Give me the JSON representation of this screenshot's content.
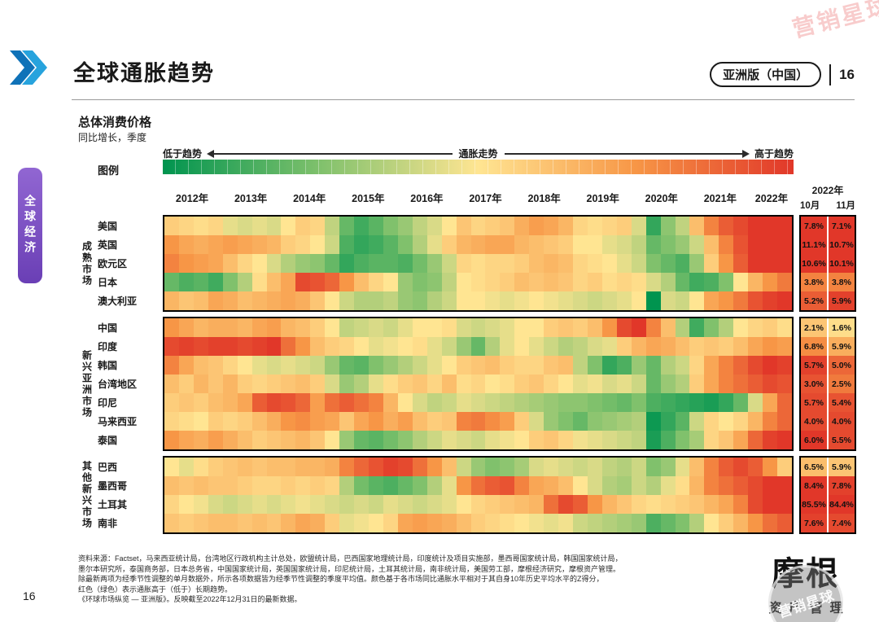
{
  "header": {
    "title": "全球通胀趋势",
    "edition": "亚洲版（中国）",
    "page_badge": "16"
  },
  "sidebar": {
    "label": "全球经济"
  },
  "legend": {
    "name": "图例",
    "low": "低于趋势",
    "axis": "通胀走势",
    "high": "高于趋势"
  },
  "chart_data": {
    "type": "heatmap",
    "title": "总体消费价格",
    "subtitle": "同比增长，季度",
    "unit": "z-score of YoY inflation vs own 10-year average",
    "zlim": [
      -2,
      2
    ],
    "color_stops": [
      "#00944F",
      "#80C16C",
      "#FFE592",
      "#F79646",
      "#E13729"
    ],
    "x_years": [
      "2012年",
      "2013年",
      "2014年",
      "2015年",
      "2016年",
      "2017年",
      "2018年",
      "2019年",
      "2020年",
      "2021年",
      "2022年"
    ],
    "quarters_per_year": [
      4,
      4,
      4,
      4,
      4,
      4,
      4,
      4,
      4,
      4,
      3
    ],
    "monthly_columns": {
      "year": "2022年",
      "months": [
        "10月",
        "11月"
      ]
    },
    "groups": [
      {
        "label": "成熟市场",
        "rows": [
          {
            "label": "美国",
            "z": [
              0.3,
              0.2,
              0.1,
              0.2,
              -0.2,
              -0.3,
              -0.2,
              -0.3,
              0.0,
              0.3,
              0.2,
              -0.5,
              -1.2,
              -1.5,
              -1.3,
              -1.0,
              -0.8,
              -0.5,
              -0.3,
              0.0,
              0.4,
              0.2,
              0.3,
              0.4,
              0.7,
              0.9,
              0.8,
              0.6,
              0.2,
              0.1,
              0.2,
              0.3,
              -0.3,
              -1.6,
              -0.9,
              -0.5,
              0.5,
              1.2,
              1.6,
              1.8,
              2.0,
              2.0,
              2.0
            ],
            "monthly_pct": [
              7.8,
              7.1
            ],
            "monthly_z": [
              2.0,
              2.0
            ]
          },
          {
            "label": "英国",
            "z": [
              1.0,
              0.8,
              0.7,
              0.8,
              0.9,
              0.8,
              0.7,
              0.6,
              0.3,
              0.2,
              0.0,
              -0.4,
              -1.4,
              -1.6,
              -1.5,
              -1.3,
              -1.0,
              -0.6,
              -0.2,
              0.3,
              0.6,
              0.7,
              0.8,
              0.8,
              0.6,
              0.5,
              0.4,
              0.3,
              0.0,
              0.0,
              -0.2,
              -0.3,
              -0.5,
              -1.2,
              -1.0,
              -0.8,
              -0.4,
              0.5,
              1.2,
              1.7,
              2.0,
              2.0,
              2.0
            ],
            "monthly_pct": [
              11.1,
              10.7
            ],
            "monthly_z": [
              2.0,
              2.0
            ]
          },
          {
            "label": "欧元区",
            "z": [
              1.2,
              1.0,
              0.9,
              0.8,
              0.5,
              0.2,
              0.0,
              -0.3,
              -0.6,
              -0.8,
              -0.9,
              -1.2,
              -1.6,
              -1.4,
              -1.3,
              -1.3,
              -1.4,
              -1.1,
              -0.8,
              -0.4,
              0.2,
              0.1,
              0.2,
              0.2,
              0.3,
              0.5,
              0.6,
              0.5,
              0.2,
              0.1,
              0.0,
              -0.2,
              -0.4,
              -1.0,
              -1.2,
              -1.4,
              -0.8,
              0.3,
              1.0,
              1.6,
              2.0,
              2.0,
              2.0
            ],
            "monthly_pct": [
              10.6,
              10.1
            ],
            "monthly_z": [
              2.0,
              2.0
            ]
          },
          {
            "label": "日本",
            "z": [
              -1.2,
              -1.4,
              -1.3,
              -1.5,
              -1.0,
              -0.6,
              0.1,
              0.5,
              0.8,
              1.8,
              1.7,
              1.5,
              1.0,
              0.5,
              0.2,
              0.0,
              -0.8,
              -1.0,
              -0.9,
              -0.5,
              0.0,
              0.1,
              0.2,
              0.3,
              0.5,
              0.4,
              0.5,
              0.4,
              0.2,
              0.3,
              0.1,
              0.2,
              0.1,
              -0.3,
              -0.6,
              -1.2,
              -1.5,
              -1.4,
              -1.0,
              0.0,
              0.6,
              1.0,
              1.3
            ],
            "monthly_pct": [
              3.8,
              3.8
            ],
            "monthly_z": [
              1.2,
              1.2
            ]
          },
          {
            "label": "澳大利亚",
            "z": [
              0.6,
              0.4,
              0.5,
              0.8,
              0.7,
              0.5,
              0.6,
              0.7,
              0.8,
              0.7,
              0.4,
              0.0,
              -0.4,
              -0.6,
              -0.6,
              -0.5,
              -0.8,
              -0.9,
              -0.6,
              -0.4,
              0.0,
              0.0,
              -0.1,
              -0.2,
              -0.1,
              0.0,
              -0.1,
              -0.2,
              -0.3,
              -0.4,
              -0.3,
              -0.2,
              0.0,
              -2.0,
              -0.3,
              -0.4,
              0.0,
              0.8,
              1.0,
              1.3,
              1.7,
              1.9,
              2.0
            ],
            "monthly_pct": [
              5.2,
              5.9
            ],
            "monthly_z": [
              1.6,
              1.9
            ]
          }
        ]
      },
      {
        "label": "新兴亚洲市场",
        "rows": [
          {
            "label": "中国",
            "z": [
              1.0,
              0.8,
              0.6,
              0.7,
              0.7,
              0.6,
              0.8,
              0.9,
              0.6,
              0.5,
              0.3,
              0.0,
              -0.5,
              -0.4,
              -0.3,
              -0.4,
              -0.2,
              0.0,
              0.0,
              0.1,
              -0.3,
              -0.4,
              -0.3,
              -0.2,
              0.0,
              0.0,
              0.3,
              0.4,
              0.3,
              0.5,
              1.0,
              1.8,
              2.0,
              1.2,
              0.5,
              -0.6,
              -1.5,
              -1.0,
              -0.6,
              0.0,
              0.2,
              0.3,
              0.1
            ],
            "monthly_pct": [
              2.1,
              1.6
            ],
            "monthly_z": [
              0.4,
              0.1
            ]
          },
          {
            "label": "印度",
            "z": [
              1.8,
              1.9,
              1.8,
              1.9,
              1.9,
              1.8,
              1.9,
              2.0,
              1.4,
              1.0,
              0.5,
              0.3,
              0.2,
              0.0,
              -0.2,
              -0.1,
              0.0,
              0.1,
              -0.2,
              -0.4,
              -0.8,
              -1.2,
              -0.6,
              -0.2,
              0.0,
              -0.2,
              -0.4,
              -0.6,
              -0.5,
              -0.3,
              -0.2,
              0.3,
              0.6,
              0.8,
              0.7,
              0.5,
              0.3,
              0.4,
              0.3,
              0.5,
              0.8,
              1.0,
              0.9
            ],
            "monthly_pct": [
              6.8,
              5.9
            ],
            "monthly_z": [
              1.1,
              0.7
            ]
          },
          {
            "label": "韩国",
            "z": [
              1.2,
              0.8,
              0.5,
              0.4,
              0.2,
              0.0,
              -0.2,
              -0.3,
              -0.2,
              -0.3,
              -0.4,
              -0.8,
              -1.2,
              -1.3,
              -1.0,
              -0.8,
              -0.6,
              -0.4,
              -0.2,
              0.0,
              0.3,
              0.4,
              0.5,
              0.3,
              0.2,
              0.2,
              0.4,
              0.5,
              -0.5,
              -1.0,
              -1.6,
              -1.4,
              -0.8,
              -1.2,
              -0.6,
              -0.4,
              0.2,
              0.8,
              1.2,
              1.5,
              1.8,
              2.0,
              1.9
            ],
            "monthly_pct": [
              5.7,
              5.0
            ],
            "monthly_z": [
              1.9,
              1.5
            ]
          },
          {
            "label": "台湾地区",
            "z": [
              0.5,
              0.3,
              0.6,
              0.4,
              0.6,
              0.3,
              0.2,
              0.3,
              0.4,
              0.5,
              0.3,
              -0.3,
              -0.8,
              -0.6,
              -0.2,
              0.1,
              0.3,
              0.4,
              0.2,
              0.5,
              0.1,
              0.2,
              0.0,
              0.1,
              0.3,
              0.4,
              0.2,
              0.0,
              -0.2,
              -0.1,
              -0.3,
              -0.2,
              -0.4,
              -1.2,
              -0.8,
              -0.6,
              0.3,
              0.8,
              1.2,
              1.4,
              1.6,
              1.8,
              1.7
            ],
            "monthly_pct": [
              3.0,
              2.5
            ],
            "monthly_z": [
              1.7,
              1.3
            ]
          },
          {
            "label": "印尼",
            "z": [
              0.3,
              0.4,
              0.3,
              0.5,
              0.6,
              0.8,
              1.6,
              1.8,
              1.7,
              1.5,
              0.9,
              1.4,
              1.6,
              1.4,
              1.2,
              0.6,
              0.0,
              -0.3,
              -0.5,
              -0.4,
              -0.2,
              -0.3,
              -0.4,
              -0.5,
              -0.6,
              -0.7,
              -0.8,
              -0.9,
              -0.9,
              -1.0,
              -1.1,
              -1.2,
              -1.0,
              -1.4,
              -1.5,
              -1.6,
              -1.7,
              -1.8,
              -1.6,
              -1.2,
              -0.3,
              0.8,
              1.5
            ],
            "monthly_pct": [
              5.7,
              5.4
            ],
            "monthly_z": [
              1.8,
              1.7
            ]
          },
          {
            "label": "马来西亚",
            "z": [
              0.2,
              0.1,
              0.0,
              0.3,
              0.2,
              0.3,
              0.5,
              0.7,
              1.0,
              1.1,
              0.9,
              0.8,
              0.4,
              0.8,
              1.0,
              0.7,
              0.9,
              0.5,
              0.3,
              0.4,
              1.2,
              1.3,
              1.1,
              0.9,
              0.3,
              -0.3,
              -0.8,
              -1.0,
              -1.2,
              -0.9,
              -0.8,
              -0.7,
              -0.6,
              -1.9,
              -1.6,
              -1.3,
              -0.4,
              0.2,
              0.0,
              0.2,
              0.6,
              1.2,
              1.5
            ],
            "monthly_pct": [
              4.0,
              4.0
            ],
            "monthly_z": [
              1.8,
              1.8
            ]
          },
          {
            "label": "泰国",
            "z": [
              1.0,
              0.8,
              0.7,
              0.9,
              0.7,
              0.5,
              0.3,
              0.4,
              0.5,
              0.6,
              0.4,
              0.0,
              -0.8,
              -1.2,
              -1.3,
              -1.1,
              -0.9,
              -0.6,
              -0.4,
              -0.2,
              -0.3,
              -0.4,
              -0.2,
              -0.1,
              0.0,
              0.3,
              0.4,
              0.2,
              -0.1,
              -0.2,
              -0.3,
              -0.4,
              -0.5,
              -1.8,
              -1.4,
              -1.0,
              -0.7,
              0.2,
              0.4,
              0.8,
              1.5,
              1.9,
              2.0
            ],
            "monthly_pct": [
              6.0,
              5.5
            ],
            "monthly_z": [
              2.0,
              1.8
            ]
          }
        ]
      },
      {
        "label": "其他新兴市场",
        "rows": [
          {
            "label": "巴西",
            "z": [
              0.0,
              -0.2,
              0.1,
              0.3,
              0.4,
              0.5,
              0.4,
              0.5,
              0.5,
              0.6,
              0.6,
              0.7,
              1.2,
              1.5,
              1.7,
              1.9,
              1.8,
              1.4,
              1.0,
              0.5,
              -0.4,
              -0.8,
              -1.0,
              -0.9,
              -0.7,
              -0.3,
              -0.2,
              -0.3,
              -0.4,
              -0.3,
              -0.5,
              -0.6,
              -0.4,
              -1.0,
              -0.8,
              -0.2,
              0.5,
              1.2,
              1.6,
              1.8,
              1.6,
              1.0,
              0.3
            ],
            "monthly_pct": [
              6.5,
              5.9
            ],
            "monthly_z": [
              0.5,
              0.4
            ]
          },
          {
            "label": "墨西哥",
            "z": [
              0.5,
              0.4,
              0.5,
              0.4,
              0.4,
              0.3,
              0.2,
              0.2,
              0.3,
              0.2,
              0.3,
              0.2,
              -0.6,
              -1.1,
              -1.3,
              -1.4,
              -1.2,
              -1.0,
              -0.6,
              -0.2,
              1.0,
              1.4,
              1.6,
              1.7,
              1.2,
              0.8,
              0.7,
              0.5,
              0.0,
              -0.3,
              -0.6,
              -0.7,
              -0.4,
              -0.6,
              -0.2,
              0.1,
              0.6,
              1.2,
              1.4,
              1.6,
              1.8,
              2.0,
              2.0
            ],
            "monthly_pct": [
              8.4,
              7.8
            ],
            "monthly_z": [
              2.0,
              1.9
            ]
          },
          {
            "label": "土耳其",
            "z": [
              0.2,
              0.0,
              -0.1,
              -0.3,
              -0.4,
              -0.3,
              -0.2,
              -0.3,
              -0.2,
              -0.1,
              -0.2,
              -0.3,
              -0.4,
              -0.3,
              -0.4,
              -0.2,
              -0.3,
              -0.4,
              -0.3,
              -0.2,
              0.0,
              0.2,
              0.3,
              0.4,
              0.5,
              0.6,
              1.4,
              1.8,
              1.6,
              1.0,
              0.6,
              0.4,
              0.2,
              0.1,
              0.2,
              0.3,
              0.4,
              0.6,
              0.8,
              1.2,
              1.8,
              2.0,
              2.0
            ],
            "monthly_pct": [
              85.5,
              84.4
            ],
            "monthly_z": [
              2.0,
              2.0
            ]
          },
          {
            "label": "南非",
            "z": [
              0.4,
              0.3,
              0.4,
              0.5,
              0.5,
              0.4,
              0.5,
              0.4,
              0.6,
              0.8,
              0.7,
              0.3,
              -0.2,
              -0.1,
              0.0,
              0.2,
              0.8,
              0.9,
              0.8,
              0.7,
              0.5,
              0.3,
              0.2,
              0.1,
              0.0,
              -0.1,
              -0.2,
              -0.1,
              -0.4,
              -0.5,
              -0.6,
              -0.7,
              -0.8,
              -1.4,
              -1.2,
              -1.0,
              -0.6,
              0.0,
              0.3,
              0.6,
              1.0,
              1.4,
              1.6
            ],
            "monthly_pct": [
              7.6,
              7.4
            ],
            "monthly_z": [
              1.9,
              1.8
            ]
          }
        ]
      }
    ]
  },
  "footer": {
    "lines": [
      "资料来源：Factset，马来西亚统计局，台湾地区行政机构主计总处，欧盟统计局，巴西国家地理统计局，印度统计及项目实施部，墨西哥国家统计局，韩国国家统计局，",
      "墨尔本研究所，泰国商务部，日本总务省，中国国家统计局，英国国家统计局，印尼统计局，土耳其统计局，南非统计局，美国劳工部，摩根经济研究，摩根资产管理。",
      "除最新两项为经季节性调整的单月数据外，所示各项数据皆为经季节性调整的季度平均值。颜色基于各市场同比通胀水平相对于其自身10年历史平均水平的Z得分，",
      "红色（绿色）表示通胀高于（低于）长期趋势。",
      "《环球市场纵览 — 亚洲版》。反映截至2022年12月31日的最新数据。"
    ],
    "page_number": "16"
  },
  "branding": {
    "logo": "摩根",
    "sub": "资产管理"
  },
  "watermark": {
    "corner": "营销星球",
    "stamp": "营销星球"
  }
}
